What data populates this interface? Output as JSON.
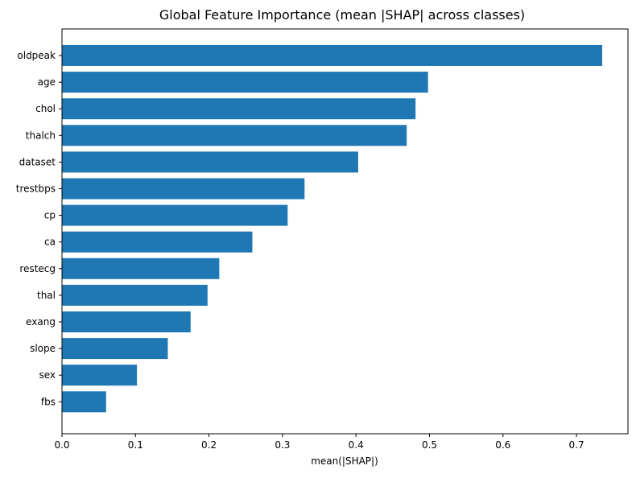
{
  "chart_data": {
    "type": "bar",
    "orientation": "horizontal",
    "title": "Global Feature Importance (mean |SHAP| across classes)",
    "xlabel": "mean(|SHAP|)",
    "ylabel": "",
    "xlim": [
      0.0,
      0.77
    ],
    "xticks": [
      0.0,
      0.1,
      0.2,
      0.3,
      0.4,
      0.5,
      0.6,
      0.7
    ],
    "xtick_labels": [
      "0.0",
      "0.1",
      "0.2",
      "0.3",
      "0.4",
      "0.5",
      "0.6",
      "0.7"
    ],
    "grid": false,
    "legend": "none",
    "bar_color": "#1f77b4",
    "categories": [
      "oldpeak",
      "age",
      "chol",
      "thalch",
      "dataset",
      "trestbps",
      "cp",
      "ca",
      "restecg",
      "thal",
      "exang",
      "slope",
      "sex",
      "fbs"
    ],
    "values": [
      0.735,
      0.498,
      0.481,
      0.469,
      0.403,
      0.33,
      0.307,
      0.259,
      0.214,
      0.198,
      0.175,
      0.144,
      0.102,
      0.06
    ]
  }
}
